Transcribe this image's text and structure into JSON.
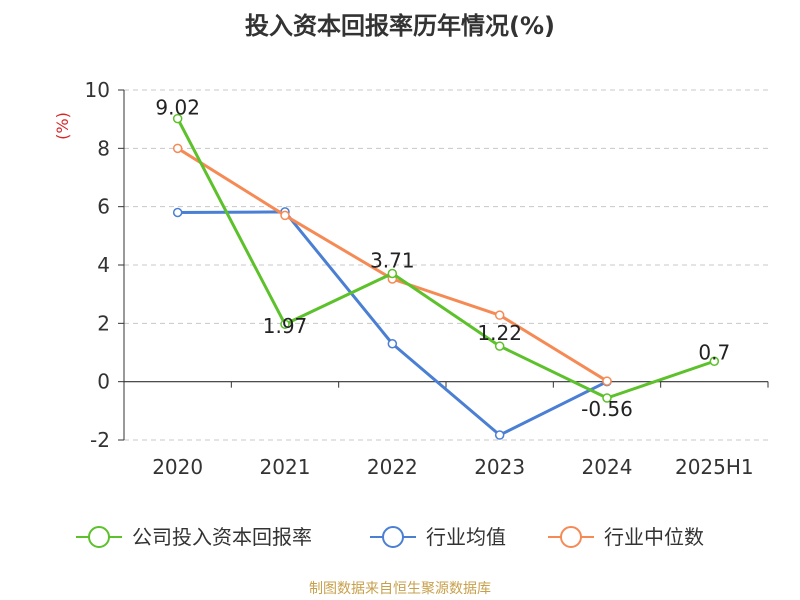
{
  "chart_data": {
    "type": "line",
    "title": "投入资本回报率历年情况(%)",
    "ylabel": "(%)",
    "categories": [
      "2020",
      "2021",
      "2022",
      "2023",
      "2024",
      "2025H1"
    ],
    "ylim": [
      -2,
      10
    ],
    "yticks": [
      -2,
      0,
      2,
      4,
      6,
      8,
      10
    ],
    "grid": true,
    "legend_position": "bottom",
    "series": [
      {
        "name": "公司投入资本回报率",
        "color": "#5cc12a",
        "values": [
          9.02,
          1.97,
          3.71,
          1.22,
          -0.56,
          0.7
        ],
        "labels": [
          "9.02",
          "1.97",
          "3.71",
          "1.22",
          "-0.56",
          "0.7"
        ]
      },
      {
        "name": "行业均值",
        "color": "#4a7fd4",
        "values": [
          5.8,
          5.82,
          1.3,
          -1.83,
          0.0,
          null
        ]
      },
      {
        "name": "行业中位数",
        "color": "#f68a55",
        "values": [
          8.0,
          5.7,
          3.52,
          2.28,
          0.02,
          null
        ]
      }
    ],
    "source": "制图数据来自恒生聚源数据库"
  }
}
